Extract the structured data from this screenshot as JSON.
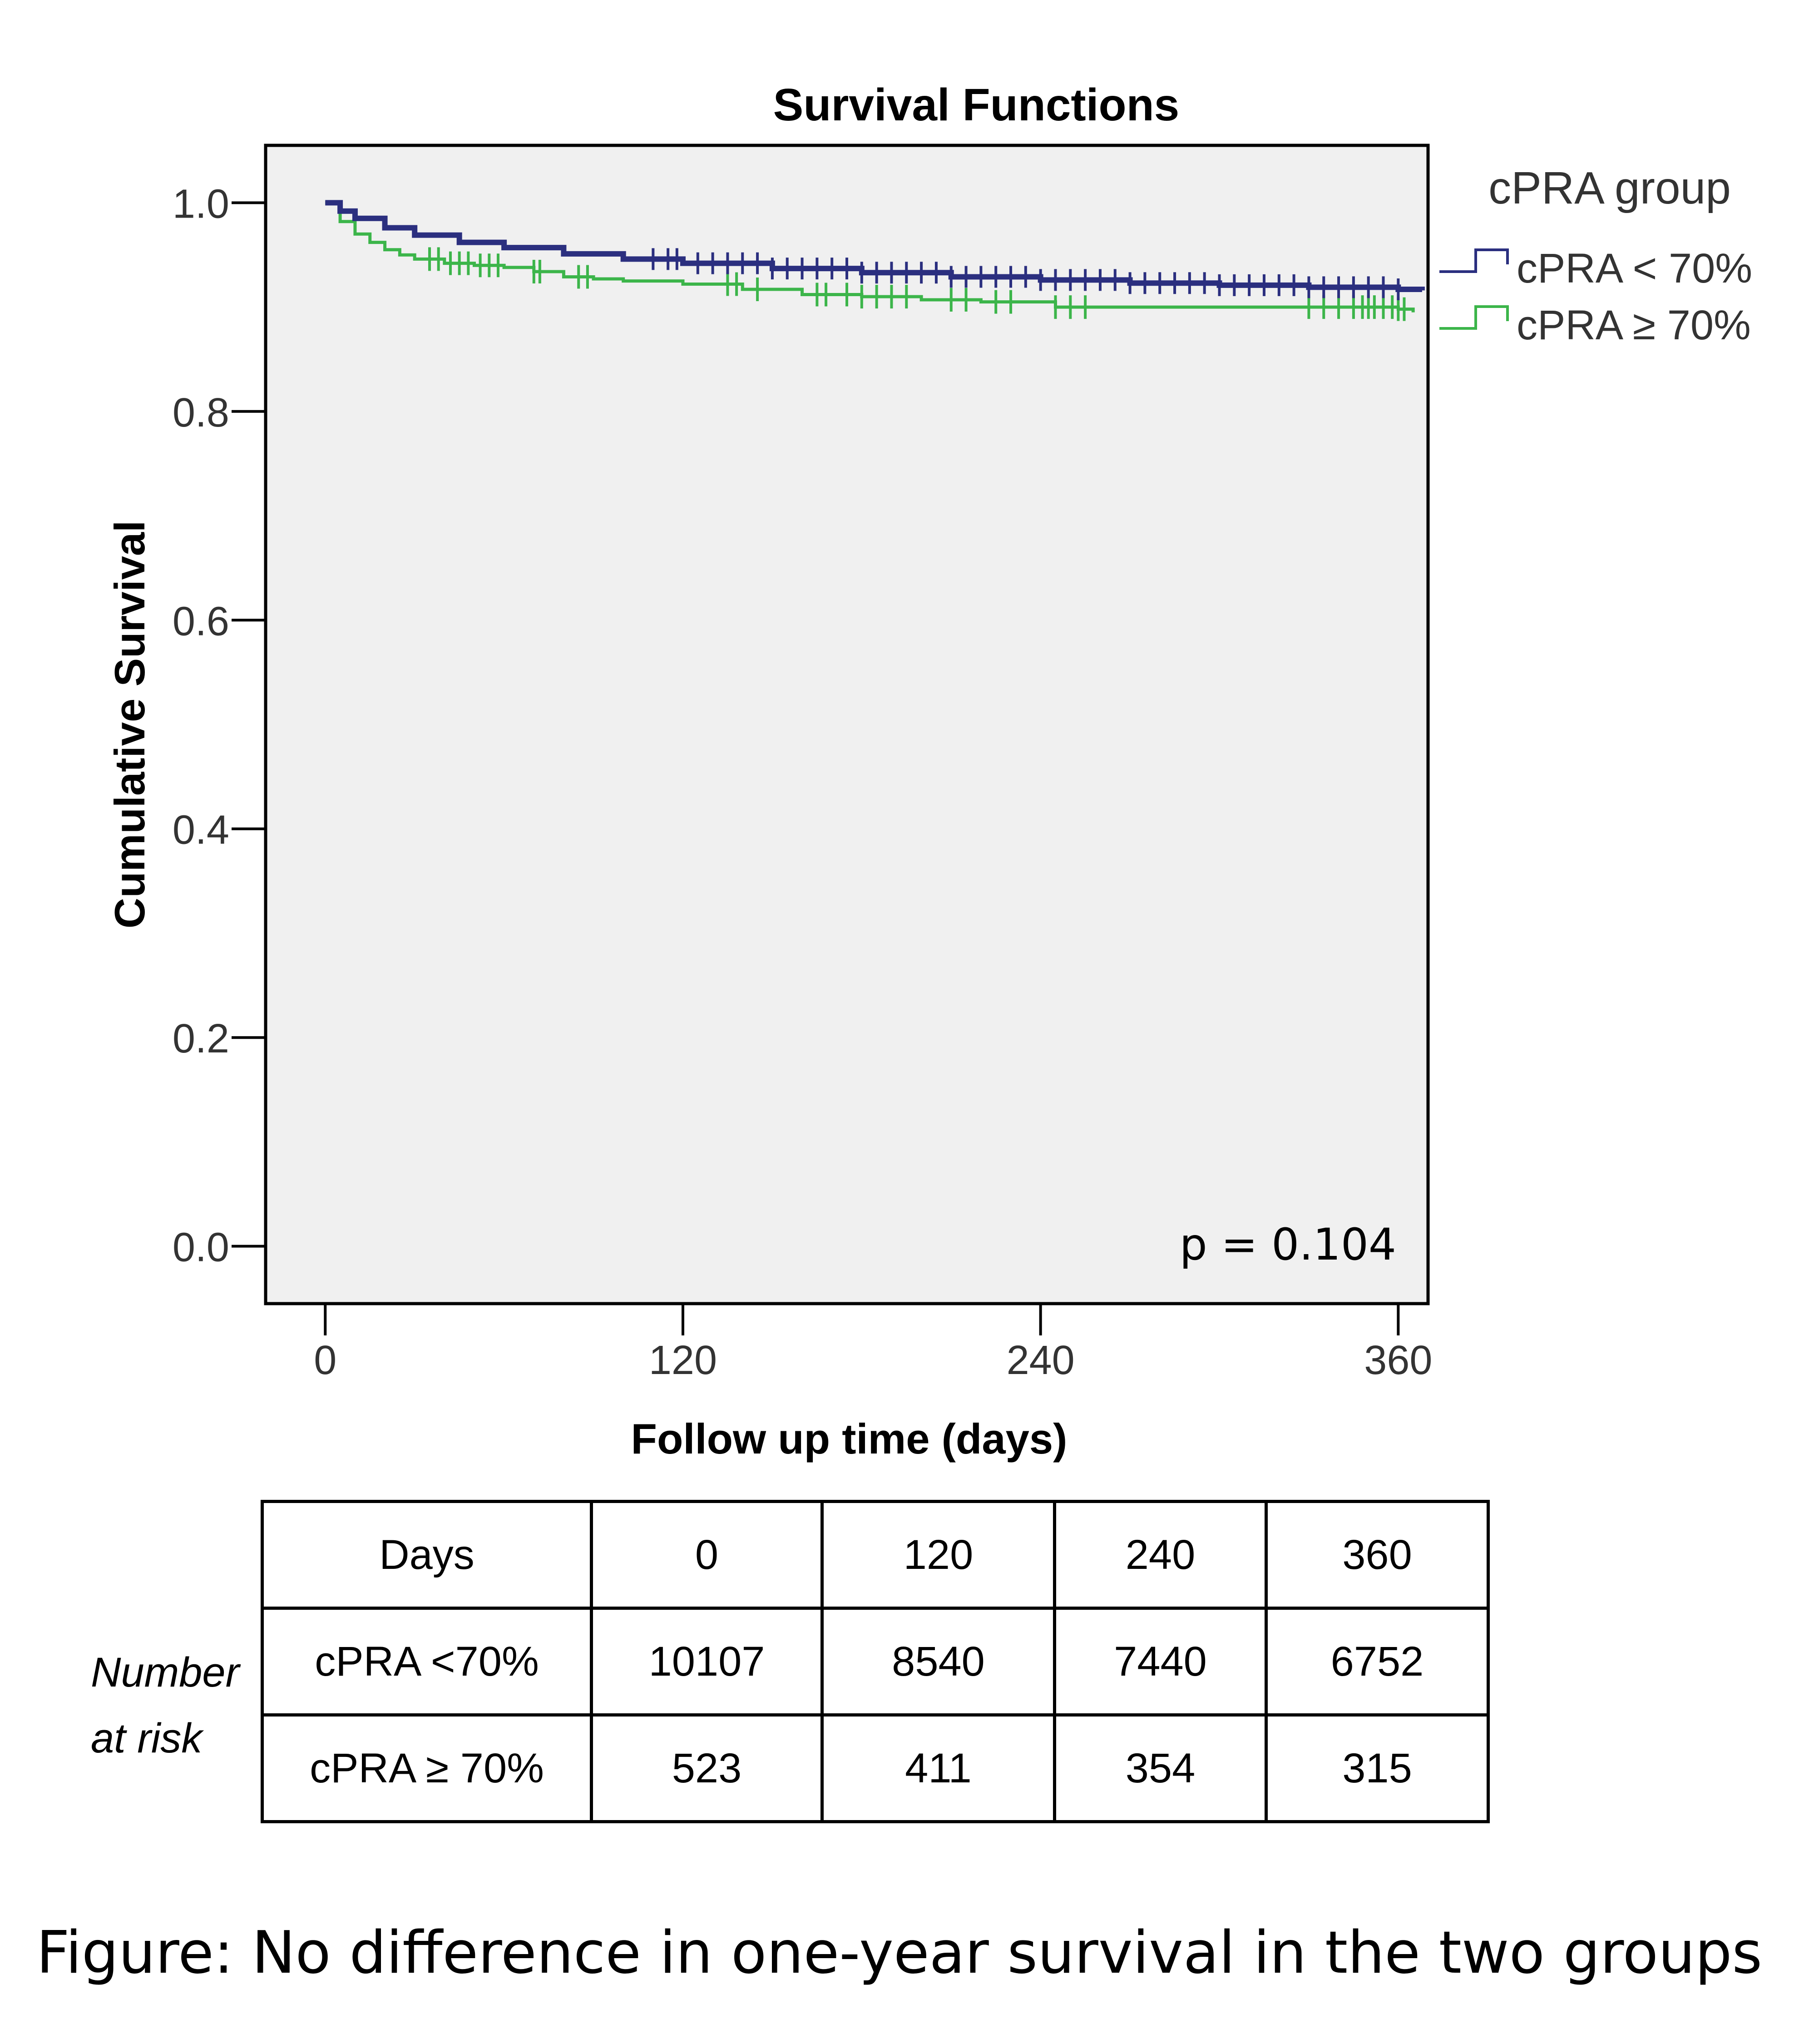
{
  "chart_data": {
    "type": "line",
    "title": "Survival Functions",
    "xlabel": "Follow up time (days)",
    "ylabel": "Cumulative Survival",
    "xlim": [
      -20,
      370
    ],
    "ylim": [
      -0.055,
      1.055
    ],
    "xticks": [
      0,
      120,
      240,
      360
    ],
    "xtick_labels": [
      "0",
      "120",
      "240",
      "360"
    ],
    "yticks": [
      0.0,
      0.2,
      0.4,
      0.6,
      0.8,
      1.0
    ],
    "ytick_labels": [
      "0.0",
      "0.2",
      "0.4",
      "0.6",
      "0.8",
      "1.0"
    ],
    "legend_title": "cPRA group",
    "legend_position": "right",
    "annotation": "p = 0.104",
    "series": [
      {
        "name": "cPRA < 70%",
        "color": "#2b2f7f",
        "x": [
          0,
          5,
          10,
          20,
          30,
          45,
          60,
          80,
          100,
          120,
          150,
          180,
          210,
          240,
          270,
          300,
          330,
          360,
          368
        ],
        "y": [
          1.0,
          0.992,
          0.985,
          0.976,
          0.969,
          0.962,
          0.957,
          0.951,
          0.946,
          0.942,
          0.937,
          0.933,
          0.929,
          0.926,
          0.923,
          0.921,
          0.919,
          0.917,
          0.916
        ],
        "censor_x": [
          110,
          115,
          118,
          125,
          130,
          135,
          140,
          145,
          150,
          155,
          160,
          165,
          170,
          175,
          180,
          185,
          190,
          195,
          200,
          205,
          210,
          215,
          220,
          225,
          230,
          235,
          240,
          245,
          250,
          255,
          260,
          265,
          270,
          275,
          280,
          285,
          290,
          295,
          300,
          305,
          310,
          315,
          320,
          325,
          330,
          335,
          340,
          345,
          350,
          355,
          360
        ]
      },
      {
        "name": "cPRA ≥ 70%",
        "color": "#3cb54a",
        "x": [
          0,
          5,
          10,
          15,
          20,
          25,
          30,
          40,
          50,
          60,
          70,
          80,
          90,
          100,
          120,
          140,
          160,
          180,
          200,
          220,
          245,
          260,
          300,
          360,
          365
        ],
        "y": [
          1.0,
          0.982,
          0.97,
          0.962,
          0.955,
          0.95,
          0.946,
          0.942,
          0.94,
          0.938,
          0.934,
          0.929,
          0.927,
          0.925,
          0.922,
          0.917,
          0.912,
          0.91,
          0.907,
          0.905,
          0.9,
          0.9,
          0.9,
          0.898,
          0.895
        ],
        "censor_x": [
          35,
          38,
          42,
          45,
          48,
          52,
          55,
          58,
          70,
          72,
          85,
          88,
          135,
          138,
          145,
          165,
          168,
          175,
          180,
          185,
          190,
          195,
          210,
          215,
          225,
          230,
          245,
          250,
          255,
          330,
          335,
          340,
          345,
          348,
          350,
          352,
          355,
          358,
          360,
          362
        ]
      }
    ]
  },
  "risk_table": {
    "side_label_line1": "Number",
    "side_label_line2": "at risk",
    "header": [
      "Days",
      "0",
      "120",
      "240",
      "360"
    ],
    "rows": [
      [
        "cPRA <70%",
        "10107",
        "8540",
        "7440",
        "6752"
      ],
      [
        "cPRA ≥ 70%",
        "523",
        "411",
        "354",
        "315"
      ]
    ]
  },
  "caption": "Figure: No difference in one-year survival in the two groups"
}
